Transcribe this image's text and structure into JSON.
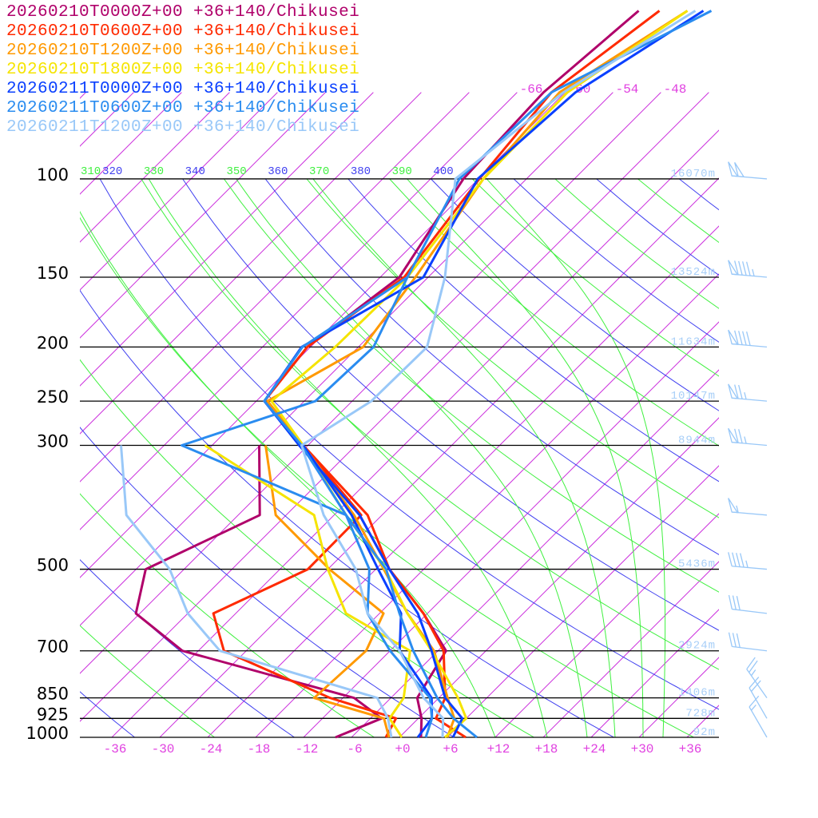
{
  "chart_data": {
    "type": "skew-t",
    "legend_placement": "top-left",
    "pressure_levels_labeled": [
      100,
      150,
      200,
      250,
      300,
      500,
      700,
      850,
      925,
      1000
    ],
    "pressure_labels": [
      "100",
      "150",
      "200",
      "250",
      "300",
      "500",
      "700",
      "850",
      "925",
      "1000"
    ],
    "height_labels": [
      "16070m",
      "13524m",
      "11634m",
      "10147m",
      "8944m",
      "5436m",
      "2924m",
      "1406m",
      "728m",
      "92m"
    ],
    "temperature_ticks": [
      "-36",
      "-30",
      "-24",
      "-18",
      "-12",
      "-6",
      "+0",
      "+6",
      "+12",
      "+18",
      "+24",
      "+30",
      "+36"
    ],
    "temperature_tick_values": [
      -36,
      -30,
      -24,
      -18,
      -12,
      -6,
      0,
      6,
      12,
      18,
      24,
      30,
      36
    ],
    "isotherm_top_labels": [
      "-66",
      "-60",
      "-54",
      "-48"
    ],
    "isotherm_top_values": [
      -66,
      -60,
      -54,
      -48
    ],
    "isotherm_step": 6,
    "theta_labels": [
      "310",
      "320",
      "330",
      "340",
      "350",
      "360",
      "370",
      "380",
      "390",
      "400"
    ],
    "theta_values": [
      310,
      320,
      330,
      340,
      350,
      360,
      370,
      380,
      390,
      400
    ],
    "dry_adiabat_range": [
      230,
      480
    ],
    "moist_adiabats_t1000": [
      12,
      18.5,
      23.5,
      27,
      30.5,
      33
    ],
    "xlim": [
      -40,
      40
    ],
    "ylim": [
      1000,
      100
    ],
    "colors": {
      "isobar": "#000000",
      "isotherm": "#cc33dd",
      "theta_even": "#4040f0",
      "theta_odd": "#40f040",
      "moist": "#40f040",
      "barb": "#99c8f8"
    },
    "levels": [
      1000,
      925,
      850,
      700,
      600,
      500,
      400,
      300,
      250,
      200,
      150,
      100,
      70,
      50
    ],
    "series": [
      {
        "name": "20260210T0000Z+00 +36+140/Chikusei",
        "color": "#b0006a",
        "temp": [
          2.7,
          0.4,
          -2.7,
          -5,
          -12.5,
          -22.3,
          -32.8,
          -48.9,
          -59,
          -60.4,
          -57.6,
          -61.9,
          -62.7,
          -61
        ],
        "dewpoint": [
          -8,
          -4.6,
          -10.6,
          -38,
          -48.5,
          -52.8,
          -45.3,
          -54.1
        ]
      },
      {
        "name": "20260210T0600Z+00 +36+140/Chikusei",
        "color": "#ff2a00",
        "temp": [
          8.3,
          2.2,
          0.8,
          -5.3,
          -12.5,
          -22.3,
          -31.8,
          -48.6,
          -59,
          -60.4,
          -57,
          -59.9,
          -61.7,
          -58.4
        ],
        "dewpoint": [
          -1.7,
          -2.8,
          -13.6,
          -32.8,
          -38.8,
          -32.5,
          -32.6,
          -48.6
        ]
      },
      {
        "name": "20260210T1200Z+00 +36+140/Chikusei",
        "color": "#ff9900",
        "temp": [
          6,
          4.5,
          1.1,
          -6.5,
          -14.5,
          -23,
          -33.5,
          -48.6,
          -58.6,
          -53.4,
          -55.6,
          -59.4,
          -60.7,
          -54.9
        ],
        "dewpoint": [
          -1.3,
          -4.3,
          -15.6,
          -15,
          -17.5,
          -29.8,
          -43.3,
          -53.3
        ]
      },
      {
        "name": "20260210T1800Z+00 +36+140/Chikusei",
        "color": "#f5e400",
        "temp": [
          5.7,
          6,
          2.4,
          -6.8,
          -14.5,
          -22.8,
          -34.5,
          -48.6,
          -58.1,
          -56.9,
          -56.6,
          -59.4,
          -59.7,
          -54.9
        ],
        "dewpoint": [
          0.3,
          -3.6,
          -4.4,
          -9.5,
          -22.2,
          -30,
          -38.5,
          -60.9
        ]
      },
      {
        "name": "20260211T0000Z+00 +36+140/Chikusei",
        "color": "#0a40ff",
        "temp": [
          6.7,
          5.5,
          0.8,
          -6.8,
          -13.2,
          -22.3,
          -32.8,
          -49.1,
          -59,
          -61.1,
          -54.6,
          -60.1,
          -58.7,
          -52.9
        ],
        "dewpoint": [
          2.3,
          1.7,
          -0.9,
          -10.8,
          -15.3,
          -23.7,
          -33.8,
          -48.6
        ]
      },
      {
        "name": "20260211T0600Z+00 +36+140/Chikusei",
        "color": "#2a8cf0",
        "temp": [
          9.7,
          4.4,
          -0.2,
          -9.1,
          -15.5,
          -22.7,
          -34.5,
          -48.8,
          -59,
          -61,
          -56.6,
          -62.4,
          -61.7,
          -51.9
        ],
        "dewpoint": [
          3.3,
          1.7,
          -1.1,
          -12,
          -19.5,
          -24.8,
          -34.5,
          -63.8,
          -52.6,
          -52.1,
          -56.6
        ]
      },
      {
        "name": "20260211T1200Z+00 +36+140/Chikusei",
        "color": "#99c8f8",
        "temp": [
          5.4,
          3.1,
          -1.9,
          -10.8,
          -19.5,
          -26.5,
          -37.3,
          -48.8,
          -45.6,
          -45.4,
          -51.9,
          -62.9,
          -60.2,
          -53.9
        ],
        "dewpoint": [
          -1,
          -3.8,
          -7.7,
          -33.3,
          -42,
          -49.8,
          -62,
          -71.4
        ]
      }
    ],
    "wind_barbs": [
      {
        "p": 100,
        "dir": 275,
        "kt": 100
      },
      {
        "p": 150,
        "dir": 275,
        "kt": 95
      },
      {
        "p": 200,
        "dir": 275,
        "kt": 90
      },
      {
        "p": 250,
        "dir": 275,
        "kt": 75
      },
      {
        "p": 300,
        "dir": 275,
        "kt": 75
      },
      {
        "p": 400,
        "dir": 275,
        "kt": 55
      },
      {
        "p": 500,
        "dir": 275,
        "kt": 45
      },
      {
        "p": 600,
        "dir": 277,
        "kt": 30
      },
      {
        "p": 700,
        "dir": 277,
        "kt": 30
      },
      {
        "p": 850,
        "dir": 325,
        "kt": 25
      },
      {
        "p": 925,
        "dir": 330,
        "kt": 20
      },
      {
        "p": 1000,
        "dir": 330,
        "kt": 15
      }
    ]
  }
}
